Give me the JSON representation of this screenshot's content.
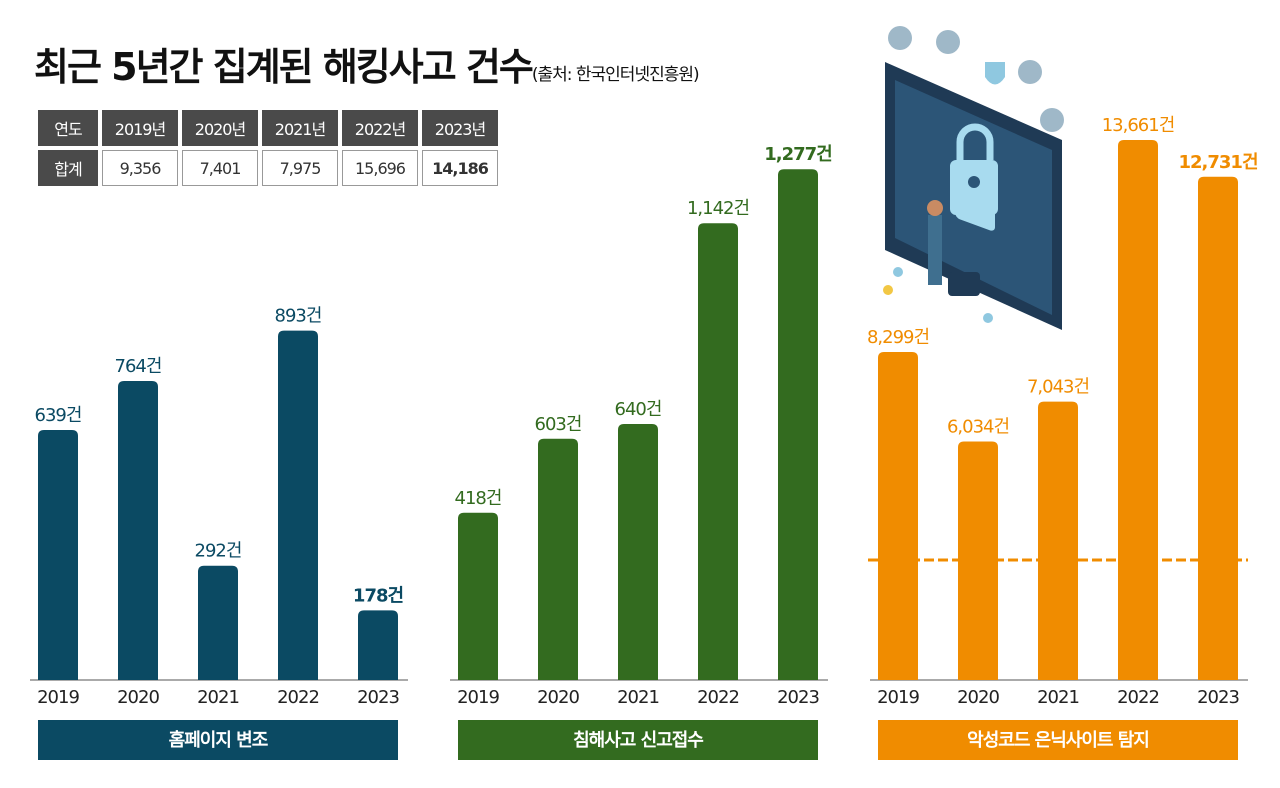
{
  "title": "최근 5년간 집계된 해킹사고 건수",
  "source": "(출처: 한국인터넷진흥원)",
  "table": {
    "header": [
      "연도",
      "2019년",
      "2020년",
      "2021년",
      "2022년",
      "2023년"
    ],
    "rows": [
      [
        "합계",
        "9,356",
        "7,401",
        "7,975",
        "15,696",
        "14,186"
      ]
    ]
  },
  "chart_data": [
    {
      "type": "bar",
      "title": "홈페이지 변조",
      "categories": [
        "2019",
        "2020",
        "2021",
        "2022",
        "2023"
      ],
      "values": [
        639,
        764,
        292,
        893,
        178
      ],
      "value_labels": [
        "639건",
        "764건",
        "292건",
        "893건",
        "178건"
      ],
      "color": "#0b4a63",
      "ylim": [
        0,
        1380
      ]
    },
    {
      "type": "bar",
      "title": "침해사고 신고접수",
      "categories": [
        "2019",
        "2020",
        "2021",
        "2022",
        "2023"
      ],
      "values": [
        418,
        603,
        640,
        1142,
        1277
      ],
      "value_labels": [
        "418건",
        "603건",
        "640건",
        "1,142건",
        "1,277건"
      ],
      "color": "#336b1f",
      "ylim": [
        0,
        1350
      ]
    },
    {
      "type": "bar",
      "title": "악성코드 은닉사이트 탐지",
      "categories": [
        "2019",
        "2020",
        "2021",
        "2022",
        "2023"
      ],
      "values": [
        8299,
        6034,
        7043,
        13661,
        12731
      ],
      "value_labels": [
        "8,299건",
        "6,034건",
        "7,043건",
        "13,661건",
        "12,731건"
      ],
      "color": "#f08c00",
      "ylim": [
        0,
        13661
      ]
    }
  ]
}
